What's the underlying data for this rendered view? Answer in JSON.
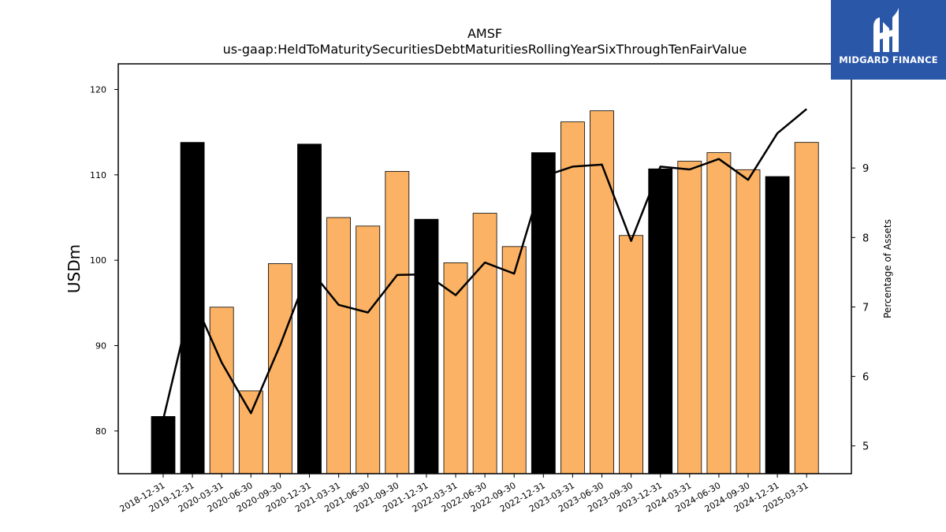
{
  "brand": {
    "name": "MIDGARD FINANCE",
    "color": "#2a57a8"
  },
  "chart_data": {
    "type": "bar",
    "title": "AMSF",
    "subtitle": "us-gaap:HeldToMaturitySecuritiesDebtMaturitiesRollingYearSixThroughTenFairValue",
    "ylabel": "USDm",
    "y2label": "Percentage of Assets",
    "ylim": [
      75,
      123
    ],
    "y2lim": [
      4.6,
      10.5
    ],
    "yticks": [
      80,
      90,
      100,
      110,
      120
    ],
    "y2ticks": [
      5,
      6,
      7,
      8,
      9
    ],
    "grid": false,
    "categories": [
      "2018-12-31",
      "2019-12-31",
      "2020-03-31",
      "2020-06-30",
      "2020-09-30",
      "2020-12-31",
      "2021-03-31",
      "2021-06-30",
      "2021-09-30",
      "2021-12-31",
      "2022-03-31",
      "2022-06-30",
      "2022-09-30",
      "2022-12-31",
      "2023-03-31",
      "2023-06-30",
      "2023-09-30",
      "2023-12-31",
      "2024-03-31",
      "2024-06-30",
      "2024-09-30",
      "2024-12-31",
      "2025-03-31"
    ],
    "series": [
      {
        "kind": "bar",
        "axis": "left",
        "values": [
          81.7,
          113.8,
          94.5,
          84.7,
          99.6,
          113.6,
          105.0,
          104.0,
          110.4,
          104.8,
          99.7,
          105.5,
          101.6,
          112.6,
          116.2,
          117.5,
          102.9,
          110.7,
          111.6,
          112.6,
          110.6,
          109.8,
          113.8
        ],
        "annual": [
          true,
          true,
          false,
          false,
          false,
          true,
          false,
          false,
          false,
          true,
          false,
          false,
          false,
          true,
          false,
          false,
          false,
          true,
          false,
          false,
          false,
          true,
          false
        ],
        "color_annual": "#000000",
        "color_quarterly": "#fbb264"
      },
      {
        "kind": "line",
        "axis": "right",
        "values": [
          5.38,
          7.15,
          6.2,
          5.47,
          6.45,
          7.55,
          7.03,
          6.92,
          7.46,
          7.47,
          7.17,
          7.64,
          7.48,
          8.88,
          9.02,
          9.05,
          7.95,
          9.02,
          8.98,
          9.13,
          8.83,
          9.5,
          9.85
        ],
        "color": "#000000"
      }
    ]
  }
}
